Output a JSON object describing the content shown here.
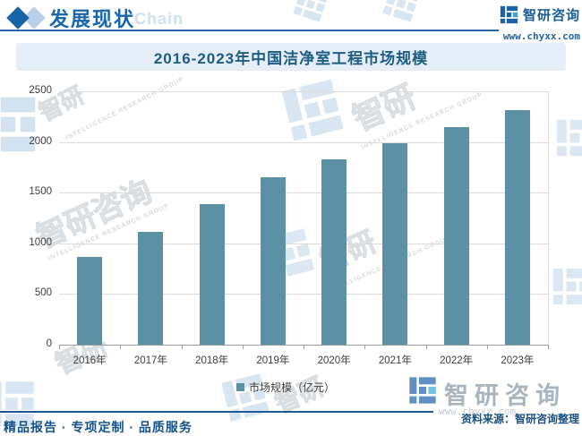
{
  "header": {
    "section_title": "发展现状",
    "watermark_word": "Chain",
    "brand": "智研咨询",
    "website": "www.chyxx.com"
  },
  "chart_data": {
    "type": "bar",
    "title": "2016-2023年中国洁净室工程市场规模",
    "categories": [
      "2016年",
      "2017年",
      "2018年",
      "2019年",
      "2020年",
      "2021年",
      "2022年",
      "2023年"
    ],
    "series": [
      {
        "name": "市场规模（亿元）",
        "values": [
          870,
          1110,
          1390,
          1650,
          1830,
          1990,
          2150,
          2315
        ]
      }
    ],
    "xlabel": "",
    "ylabel": "",
    "ylim": [
      0,
      2500
    ],
    "yticks": [
      0,
      500,
      1000,
      1500,
      2000,
      2500
    ],
    "grid": true,
    "legend_position": "bottom",
    "bar_color": "#5b90a5"
  },
  "watermarks": {
    "brand": "智研咨询",
    "brand_short": "智研",
    "caption": "INTELLIGENCE RESEARCH GROUP"
  },
  "footer": {
    "source": "资料来源：智研咨询整理",
    "services": "精品报告 · 专项定制 · 品质服务",
    "brand": "智研咨询"
  },
  "colors": {
    "accent_blue": "#1b63a8",
    "title_text": "#1e5c82",
    "title_band_bg": "#e3eef9",
    "bar": "#5b90a5",
    "gridline": "#dcdcdc",
    "footer_blue": "#1c5a94"
  }
}
